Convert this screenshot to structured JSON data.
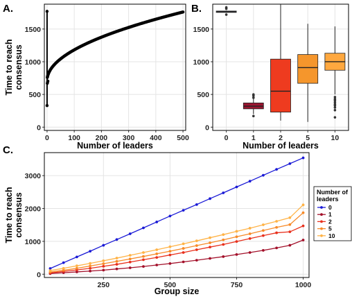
{
  "chart_data": [
    {
      "panel": "A.",
      "type": "scatter",
      "xlabel": "Number of leaders",
      "ylabel": "Time to reach consensus",
      "xlim": [
        -10,
        510
      ],
      "ylim": [
        -50,
        1880
      ],
      "xticks": [
        0,
        100,
        200,
        300,
        400,
        500
      ],
      "yticks": [
        0,
        500,
        1000,
        1500
      ],
      "grid": true,
      "curve": {
        "x_range": [
          1,
          500
        ],
        "y_at_1": 760,
        "y_at_500": 1760,
        "exponent": 0.5
      },
      "leader_zero_column": {
        "x": 0,
        "y_min": 330,
        "y_max": 1770
      }
    },
    {
      "panel": "B.",
      "type": "box",
      "xlabel": "Number of leaders",
      "ylabel": "",
      "ylim": [
        -50,
        1880
      ],
      "yticks": [
        0,
        500,
        1000,
        1500
      ],
      "grid": true,
      "categories": [
        "0",
        "1",
        "2",
        "5",
        "10"
      ],
      "boxes": [
        {
          "category": "0",
          "q1": 1755,
          "median": 1765,
          "q3": 1775,
          "whisker_low": 1750,
          "whisker_high": 1780,
          "outliers": [
            1720,
            1810,
            1830
          ],
          "color": "#3d3f7a"
        },
        {
          "category": "1",
          "q1": 280,
          "median": 320,
          "q3": 370,
          "whisker_low": 200,
          "whisker_high": 440,
          "outliers": [
            170,
            450,
            480,
            500
          ],
          "color": "#9b1530"
        },
        {
          "category": "2",
          "q1": 230,
          "median": 550,
          "q3": 1040,
          "whisker_low": 100,
          "whisker_high": 1880,
          "outliers": [],
          "color": "#ee3b1f"
        },
        {
          "category": "5",
          "q1": 670,
          "median": 910,
          "q3": 1110,
          "whisker_low": 80,
          "whisker_high": 1580,
          "outliers": [],
          "color": "#f5962c"
        },
        {
          "category": "10",
          "q1": 870,
          "median": 1000,
          "q3": 1130,
          "whisker_low": 500,
          "whisker_high": 1540,
          "outliers": [
            150,
            260,
            300,
            330,
            350,
            380,
            410,
            430,
            460
          ],
          "color": "#ffa83f"
        }
      ]
    },
    {
      "panel": "C.",
      "type": "line",
      "xlabel": "Group size",
      "ylabel": "Time to reach consensus",
      "xlim": [
        28,
        1022
      ],
      "ylim": [
        -100,
        3700
      ],
      "xticks": [
        250,
        500,
        750,
        1000
      ],
      "yticks": [
        0,
        1000,
        2000,
        3000
      ],
      "grid": true,
      "x": [
        50,
        100,
        150,
        200,
        250,
        300,
        350,
        400,
        450,
        500,
        550,
        600,
        650,
        700,
        750,
        800,
        850,
        900,
        950,
        1000
      ],
      "series": [
        {
          "name": "0",
          "color": "#1a1ad6",
          "values": [
            175,
            350,
            525,
            700,
            880,
            1055,
            1230,
            1410,
            1590,
            1770,
            1945,
            2120,
            2300,
            2475,
            2655,
            2830,
            3010,
            3190,
            3365,
            3540
          ]
        },
        {
          "name": "1",
          "color": "#a3102a",
          "values": [
            20,
            45,
            70,
            95,
            125,
            160,
            195,
            235,
            280,
            325,
            375,
            425,
            480,
            535,
            600,
            660,
            725,
            800,
            880,
            1040
          ]
        },
        {
          "name": "2",
          "color": "#e8301c",
          "values": [
            40,
            85,
            130,
            180,
            240,
            300,
            370,
            440,
            510,
            585,
            660,
            745,
            825,
            905,
            995,
            1085,
            1175,
            1260,
            1290,
            1470
          ]
        },
        {
          "name": "5",
          "color": "#f78a28",
          "values": [
            65,
            120,
            180,
            250,
            320,
            390,
            465,
            540,
            620,
            700,
            785,
            870,
            955,
            1045,
            1140,
            1230,
            1330,
            1425,
            1510,
            1870
          ]
        },
        {
          "name": "10",
          "color": "#ffb347",
          "values": [
            110,
            180,
            255,
            330,
            410,
            490,
            575,
            660,
            745,
            835,
            925,
            1015,
            1110,
            1205,
            1305,
            1400,
            1505,
            1610,
            1720,
            2110
          ]
        }
      ],
      "legend": {
        "title": "Number of leaders",
        "position": "right"
      }
    }
  ]
}
